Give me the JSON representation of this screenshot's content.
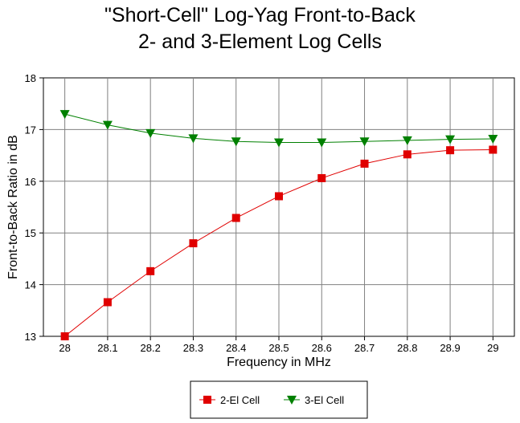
{
  "chart_data": {
    "type": "line",
    "title_lines": [
      "\"Short-Cell\" Log-Yag Front-to-Back",
      "2- and 3-Element Log Cells"
    ],
    "xlabel": "Frequency in MHz",
    "ylabel": "Front-to-Back Ratio in dB",
    "x": [
      28,
      28.1,
      28.2,
      28.3,
      28.4,
      28.5,
      28.6,
      28.7,
      28.8,
      28.9,
      29
    ],
    "x_tick_labels": [
      "28",
      "28.1",
      "28.2",
      "28.3",
      "28.4",
      "28.5",
      "28.6",
      "28.7",
      "28.8",
      "28.9",
      "29"
    ],
    "xlim": [
      27.95,
      29.05
    ],
    "ylim": [
      13,
      18
    ],
    "y_ticks": [
      13,
      14,
      15,
      16,
      17,
      18
    ],
    "y_tick_labels": [
      "13",
      "14",
      "15",
      "16",
      "17",
      "18"
    ],
    "grid": true,
    "legend_position": "bottom",
    "series": [
      {
        "name": "2-El Cell",
        "color": "#e00000",
        "marker": "square",
        "values": [
          13.0,
          13.66,
          14.26,
          14.8,
          15.29,
          15.71,
          16.06,
          16.34,
          16.52,
          16.6,
          16.61
        ]
      },
      {
        "name": "3-El Cell",
        "color": "#008000",
        "marker": "triangle-down",
        "values": [
          17.3,
          17.09,
          16.93,
          16.83,
          16.77,
          16.75,
          16.75,
          16.77,
          16.79,
          16.81,
          16.82
        ]
      }
    ]
  }
}
